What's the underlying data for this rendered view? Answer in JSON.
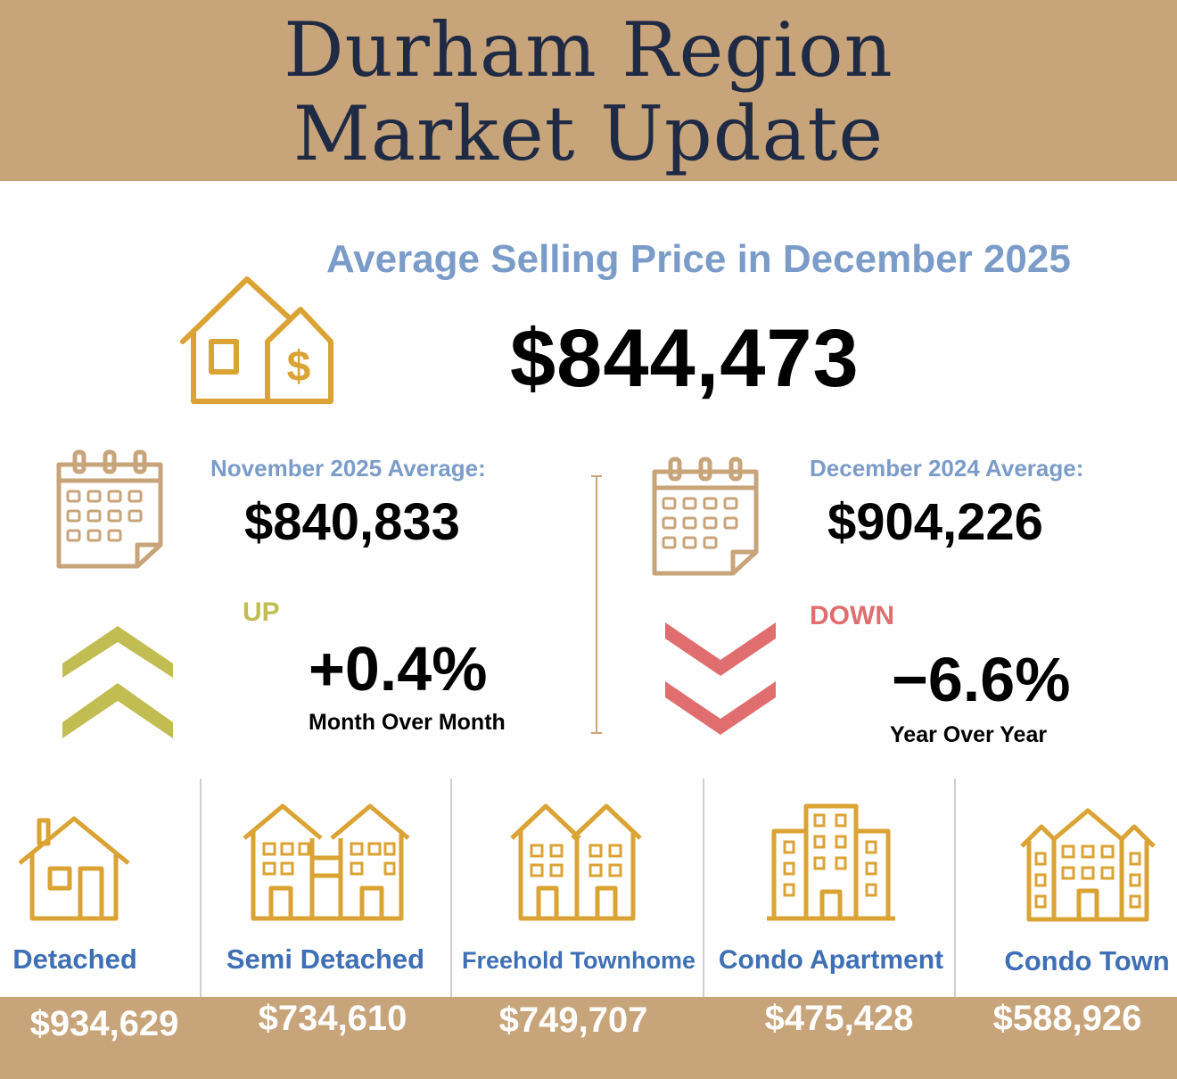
{
  "header": {
    "line1": "Durham Region",
    "line2": "Market Update"
  },
  "average": {
    "label": "Average Selling Price in December 2025",
    "value": "$844,473"
  },
  "month": {
    "label": "November  2025 Average:",
    "value": "$840,833",
    "direction": "UP",
    "change": "+0.4%",
    "caption": "Month Over Month"
  },
  "year": {
    "label": "December 2024 Average:",
    "value": "$904,226",
    "direction": "DOWN",
    "change": "−6.6%",
    "caption": "Year Over Year"
  },
  "property_types": [
    {
      "label": "Detached",
      "price": "$934,629",
      "icon": "detached-house-icon"
    },
    {
      "label": "Semi Detached",
      "price": "$734,610",
      "icon": "semi-detached-icon"
    },
    {
      "label": "Freehold Townhome",
      "price": "$749,707",
      "icon": "townhome-icon"
    },
    {
      "label": "Condo Apartment",
      "price": "$475,428",
      "icon": "condo-apartment-icon"
    },
    {
      "label": "Condo Town",
      "price": "$588,926",
      "icon": "condo-town-icon"
    }
  ],
  "colors": {
    "banner": "#c8a47a",
    "title": "#1f2a44",
    "accent_blue": "#7b9cc9",
    "type_blue": "#3f6fb5",
    "icon_gold": "#dba334",
    "up": "#c2bd52",
    "down": "#e06e6e"
  }
}
